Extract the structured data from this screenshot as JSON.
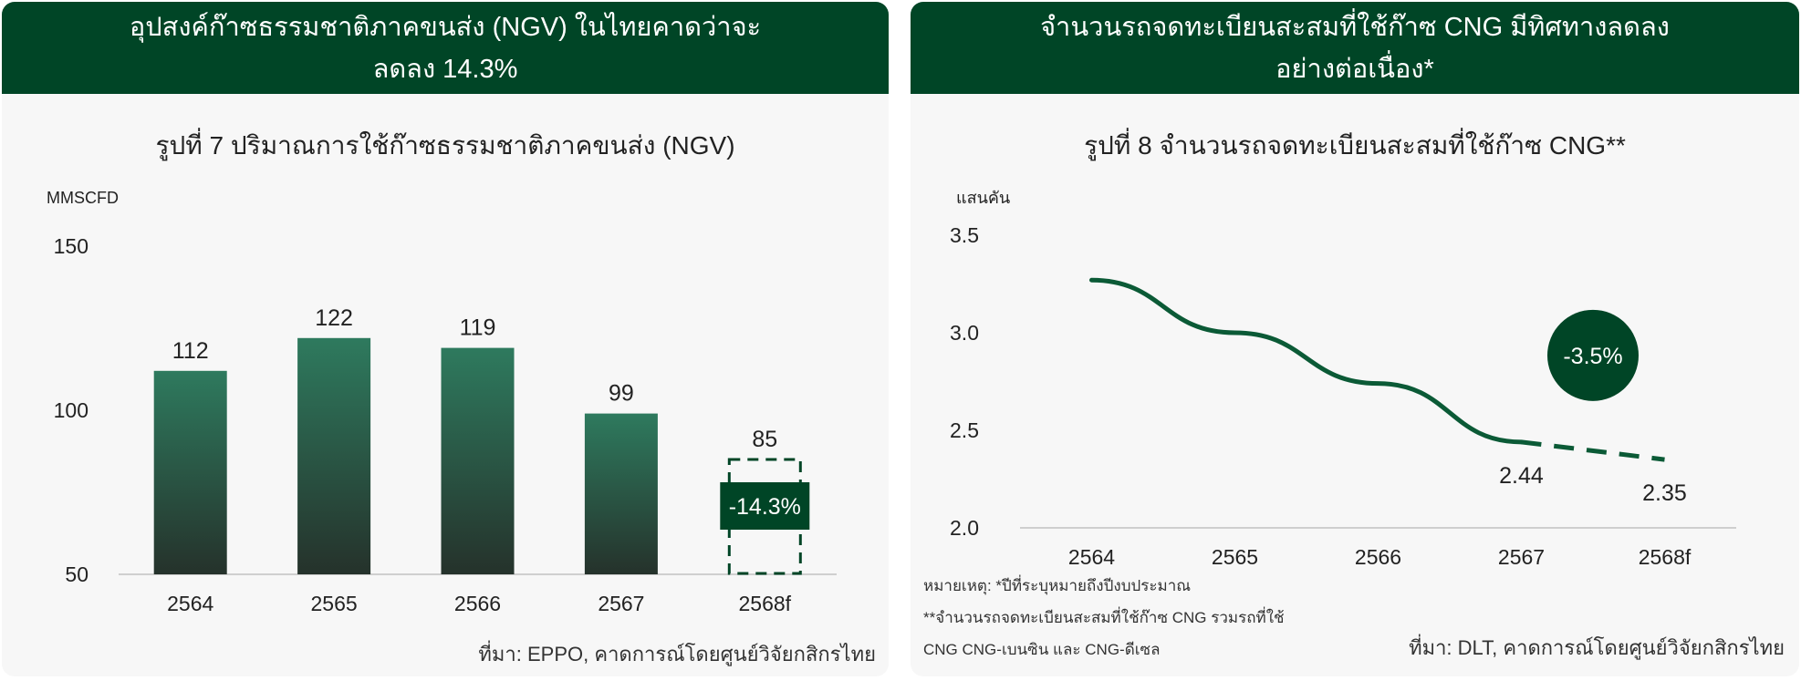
{
  "panels": {
    "left": {
      "header": "อุปสงค์ก๊าซธรรมชาติภาคขนส่ง (NGV) ในไทยคาดว่าจะลดลง 14.3%",
      "source": "ที่มา: EPPO, คาดการณ์โดยศูนย์วิจัยกสิกรไทย"
    },
    "right": {
      "header": "จำนวนรถจดทะเบียนสะสมที่ใช้ก๊าซ CNG มีทิศทางลดลงอย่างต่อเนื่อง*",
      "notes": [
        "หมายเหตุ: *ปีที่ระบุหมายถึงปีงบประมาณ",
        "**จำนวนรถจดทะเบียนสะสมที่ใช้ก๊าซ CNG รวมรถที่ใช้",
        "CNG CNG-เบนซิน และ CNG-ดีเซล"
      ],
      "source": "ที่มา: DLT, คาดการณ์โดยศูนย์วิจัยกสิกรไทย"
    }
  },
  "colors": {
    "header_bg": "#004526",
    "bar_top": "#2e7a5e",
    "bar_bottom": "#25322b",
    "line": "#0b5a36",
    "badge": "#004526"
  },
  "chart_data": [
    {
      "type": "bar",
      "title": "รูปที่ 7 ปริมาณการใช้ก๊าซธรรมชาติภาคขนส่ง (NGV)",
      "ylabel": "MMSCFD",
      "categories": [
        "2564",
        "2565",
        "2566",
        "2567",
        "2568f"
      ],
      "values": [
        112,
        122,
        119,
        99,
        85
      ],
      "value_labels": [
        "112",
        "122",
        "119",
        "99",
        "85"
      ],
      "forecast": [
        false,
        false,
        false,
        false,
        true
      ],
      "ylim": [
        50,
        150
      ],
      "yticks": [
        "50",
        "100",
        "150"
      ],
      "annotation": "-14.3%",
      "grid": false
    },
    {
      "type": "line",
      "title": "รูปที่ 8 จำนวนรถจดทะเบียนสะสมที่ใช้ก๊าซ CNG**",
      "ylabel": "แสนคัน",
      "categories": [
        "2564",
        "2565",
        "2566",
        "2567",
        "2568f"
      ],
      "values": [
        3.27,
        3.0,
        2.74,
        2.44,
        2.35
      ],
      "value_labels": [
        "",
        "",
        "",
        "2.44",
        "2.35"
      ],
      "forecast_from_index": 3,
      "ylim": [
        2.0,
        3.5
      ],
      "yticks": [
        "2.0",
        "2.5",
        "3.0",
        "3.5"
      ],
      "annotation": "-3.5%",
      "grid": false
    }
  ]
}
